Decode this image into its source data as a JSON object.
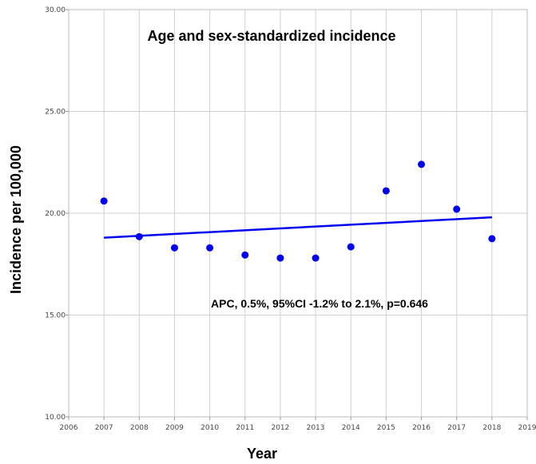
{
  "chart_data": {
    "type": "scatter",
    "title": "Age and sex-standardized incidence",
    "xlabel": "Year",
    "ylabel": "Incidence per 100,000",
    "xlim": [
      2006,
      2019
    ],
    "ylim": [
      10,
      30
    ],
    "x_ticks": [
      "2006",
      "2007",
      "2008",
      "2009",
      "2010",
      "2011",
      "2012",
      "2013",
      "2014",
      "2015",
      "2016",
      "2017",
      "2018",
      "2019"
    ],
    "y_ticks": [
      "10.00",
      "15.00",
      "20.00",
      "25.00",
      "30.00"
    ],
    "grid": true,
    "series": [
      {
        "x": [
          2007,
          2008,
          2009,
          2010,
          2011,
          2012,
          2013,
          2014,
          2015,
          2016,
          2017,
          2018
        ],
        "y": [
          20.6,
          18.85,
          18.3,
          18.3,
          17.95,
          17.8,
          17.8,
          18.35,
          21.1,
          22.4,
          20.2,
          18.75
        ],
        "color": "#0000ee"
      }
    ],
    "trend_line": {
      "x": [
        2007,
        2018
      ],
      "y": [
        18.8,
        19.8
      ],
      "color": "#0000ee"
    },
    "annotation": "APC, 0.5%, 95%CI -1.2% to 2.1%, p=0.646"
  }
}
